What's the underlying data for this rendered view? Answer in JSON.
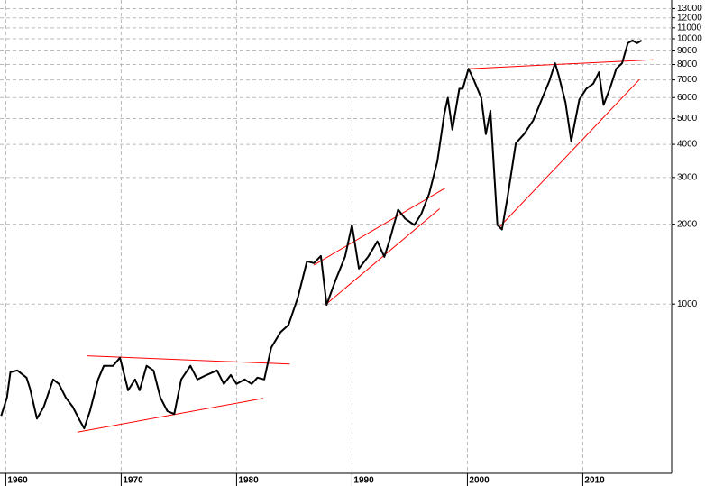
{
  "chart_data": {
    "type": "line",
    "log_y": true,
    "grid": true,
    "x": [
      1959.6,
      1960.1,
      1960.4,
      1961.0,
      1961.8,
      1962.1,
      1962.7,
      1963.3,
      1964.1,
      1964.6,
      1965.2,
      1965.8,
      1966.4,
      1966.8,
      1967.3,
      1968.0,
      1968.5,
      1969.3,
      1969.9,
      1970.6,
      1971.2,
      1971.6,
      1972.2,
      1972.8,
      1973.4,
      1974.0,
      1974.6,
      1975.2,
      1976.0,
      1976.6,
      1977.4,
      1978.3,
      1978.9,
      1979.5,
      1980.0,
      1980.7,
      1981.3,
      1981.8,
      1982.4,
      1983.0,
      1983.8,
      1984.5,
      1985.3,
      1986.1,
      1986.7,
      1987.3,
      1987.8,
      1988.6,
      1989.4,
      1990.0,
      1990.6,
      1991.4,
      1992.2,
      1992.8,
      1993.3,
      1994.0,
      1994.6,
      1995.4,
      1996.0,
      1996.7,
      1997.4,
      1998.0,
      1998.3,
      1998.7,
      1999.3,
      1999.6,
      2000.1,
      2000.6,
      2001.2,
      2001.6,
      2002.0,
      2002.6,
      2003.0,
      2003.5,
      2004.2,
      2004.9,
      2005.7,
      2006.5,
      2007.1,
      2007.6,
      2007.9,
      2008.5,
      2009.0,
      2009.7,
      2010.3,
      2010.9,
      2011.4,
      2011.8,
      2012.4,
      2012.9,
      2013.4,
      2013.9,
      2014.3,
      2014.7,
      2015.1
    ],
    "series": [
      {
        "color": "#000000",
        "values": [
          379,
          444,
          553,
          562,
          528,
          480,
          370,
          410,
          520,
          500,
          444,
          410,
          365,
          340,
          395,
          520,
          585,
          585,
          628,
          473,
          520,
          473,
          585,
          562,
          444,
          395,
          385,
          520,
          585,
          520,
          540,
          562,
          500,
          540,
          500,
          520,
          500,
          528,
          520,
          685,
          783,
          834,
          1056,
          1449,
          1427,
          1519,
          994,
          1237,
          1507,
          1986,
          1360,
          1507,
          1723,
          1507,
          1765,
          2270,
          2100,
          1986,
          2182,
          2617,
          3450,
          5196,
          5990,
          4545,
          6480,
          6480,
          7709,
          6920,
          5990,
          4370,
          5350,
          1986,
          1910,
          2555,
          4040,
          4370,
          4920,
          5990,
          6920,
          8090,
          7300,
          5760,
          4110,
          5900,
          6480,
          6770,
          7480,
          5630,
          6600,
          7709,
          8090,
          9620,
          9850,
          9620,
          9850
        ]
      }
    ],
    "trendlines": [
      {
        "color": "#ff0000",
        "x": [
          1967.0,
          1984.6
        ],
        "values": [
          638,
          594
        ]
      },
      {
        "color": "#ff0000",
        "x": [
          1966.2,
          1982.3
        ],
        "values": [
          329,
          441
        ]
      },
      {
        "color": "#ff0000",
        "x": [
          1986.7,
          1998.1
        ],
        "values": [
          1403,
          2740
        ]
      },
      {
        "color": "#ff0000",
        "x": [
          1987.7,
          1997.6
        ],
        "values": [
          994,
          2287
        ]
      },
      {
        "color": "#ff0000",
        "x": [
          2000.1,
          2016.1
        ],
        "values": [
          7709,
          8340
        ]
      },
      {
        "color": "#ff0000",
        "x": [
          2002.8,
          2014.9
        ],
        "values": [
          1955,
          7015
        ]
      }
    ],
    "xlim": [
      1959.5,
      2017.7
    ],
    "xticks": [
      1960,
      1970,
      1980,
      1990,
      2000,
      2010
    ],
    "ylim": [
      230,
      14000
    ],
    "yticks": [
      1000,
      2000,
      3000,
      4000,
      5000,
      6000,
      7000,
      8000,
      9000,
      10000,
      11000,
      12000,
      13000
    ]
  }
}
